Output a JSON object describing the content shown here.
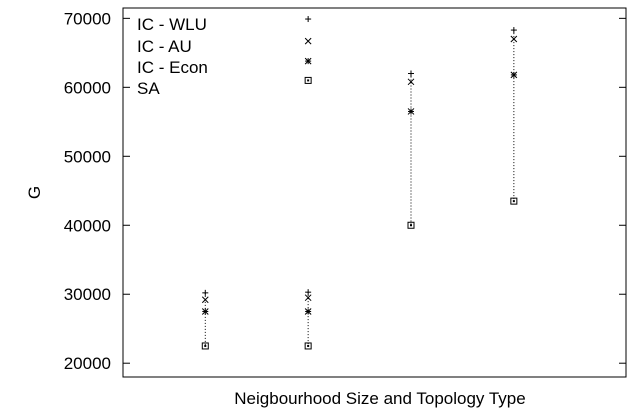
{
  "chart_data": {
    "type": "scatter",
    "xlabel": "Neigbourhood Size and Topology Type",
    "ylabel": "G",
    "ylim": [
      18000,
      71500
    ],
    "yticks": [
      20000,
      30000,
      40000,
      50000,
      60000,
      70000
    ],
    "x_positions": [
      1,
      2,
      3,
      4
    ],
    "xlim": [
      0.2,
      5.1
    ],
    "legend_position": "top-left",
    "series": [
      {
        "name": "IC - WLU",
        "marker": "plus",
        "values": [
          30200,
          30300,
          62000,
          68300
        ]
      },
      {
        "name": "IC - AU",
        "marker": "cross",
        "values": [
          29200,
          29500,
          60800,
          67000
        ]
      },
      {
        "name": "IC - Econ",
        "marker": "asterisk",
        "values": [
          27500,
          27500,
          56500,
          61800
        ]
      },
      {
        "name": "SA",
        "marker": "square",
        "values": [
          22500,
          22500,
          40000,
          43500
        ]
      }
    ],
    "legend_marker_values": [
      69900,
      66700,
      63800,
      61000
    ],
    "legend_marker_x": 2,
    "range_line_style": "dotted"
  }
}
